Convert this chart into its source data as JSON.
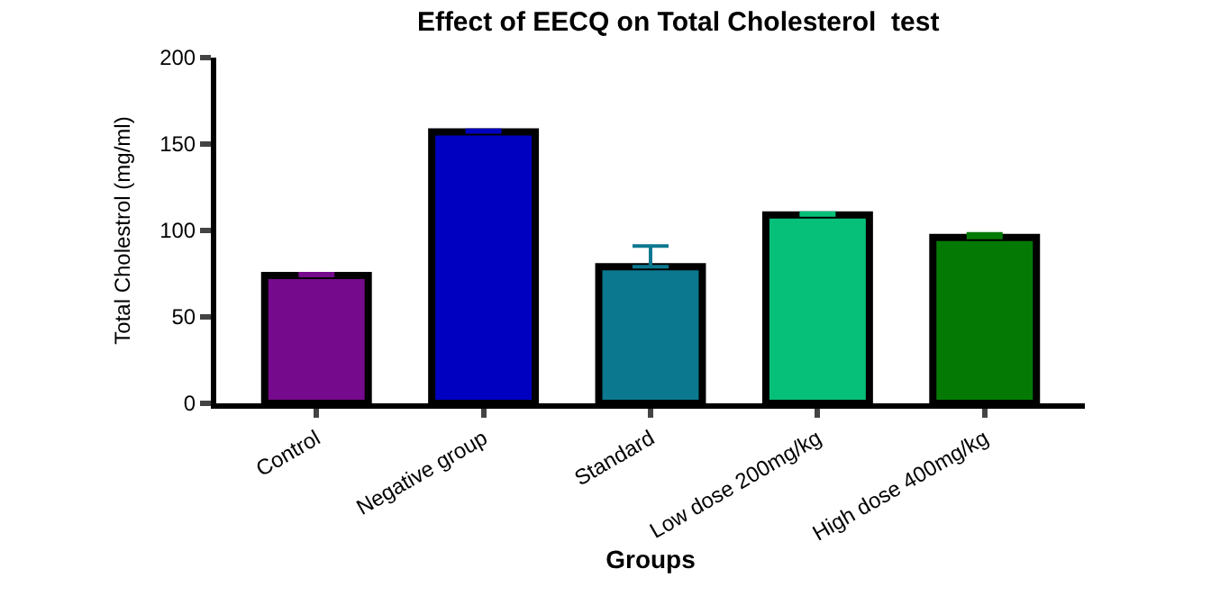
{
  "chart_data": {
    "type": "bar",
    "title": "Effect of EECQ on Total Cholesterol  test",
    "xlabel": "Groups",
    "ylabel": "Total Cholestrol (mg/ml)",
    "categories": [
      "Control",
      "Negative group",
      "Standard",
      "Low dose 200mg/kg",
      "High dose 400mg/kg"
    ],
    "values": [
      74,
      157,
      79,
      109,
      96
    ],
    "errors": [
      [
        74,
        75
      ],
      [
        157,
        158
      ],
      [
        79,
        91
      ],
      [
        109,
        110
      ],
      [
        96,
        98
      ]
    ],
    "colors": [
      "#760a8c",
      "#0000c0",
      "#0c7890",
      "#06c079",
      "#047a05"
    ],
    "ylim": [
      0,
      200
    ],
    "yticks": [
      0,
      50,
      100,
      150,
      200
    ]
  }
}
